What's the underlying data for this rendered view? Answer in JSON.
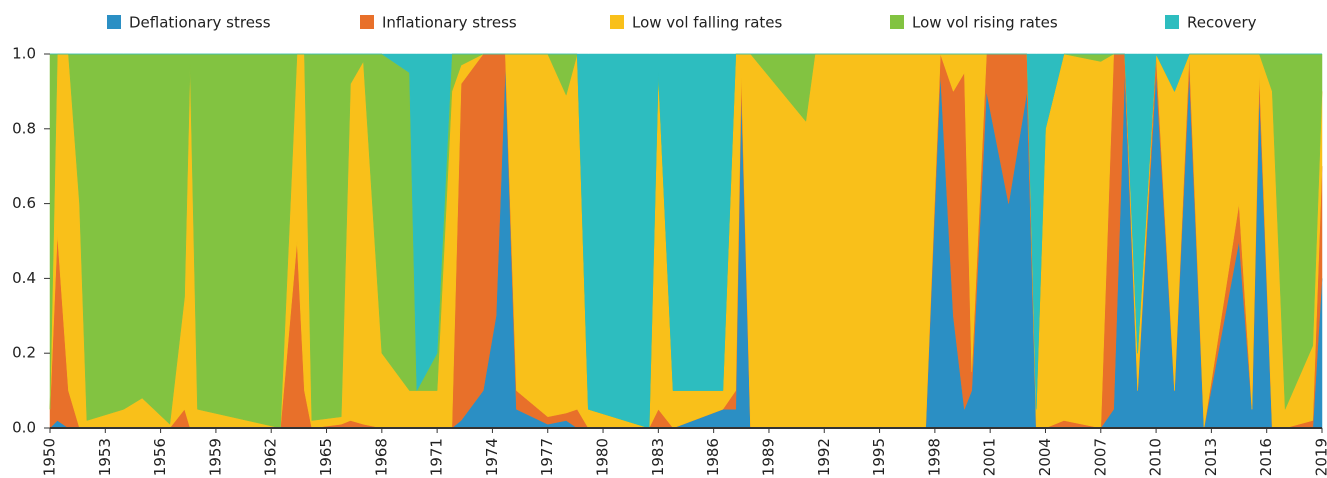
{
  "chart_data": {
    "type": "stacked_area",
    "x": [
      1950.0,
      1950.4,
      1951.0,
      1951.6,
      1952.0,
      1954.0,
      1955.0,
      1956.5,
      1957.3,
      1957.6,
      1958.0,
      1962.5,
      1963.4,
      1963.8,
      1964.2,
      1965.8,
      1966.3,
      1967.0,
      1968.0,
      1969.5,
      1969.9,
      1971.0,
      1971.8,
      1972.3,
      1973.5,
      1974.2,
      1974.7,
      1975.3,
      1977.0,
      1978.0,
      1978.6,
      1979.2,
      1982.5,
      1983.0,
      1983.8,
      1986.5,
      1987.2,
      1987.5,
      1988.0,
      1991.0,
      1991.5,
      1997.5,
      1998.3,
      1999.0,
      1999.6,
      2000.0,
      2000.8,
      2002.0,
      2003.0,
      2003.5,
      2004.0,
      2005.0,
      2007.0,
      2007.7,
      2008.3,
      2009.0,
      2010.0,
      2011.0,
      2011.8,
      2012.6,
      2014.5,
      2015.2,
      2015.6,
      2016.3,
      2017.0,
      2018.5,
      2019.0
    ],
    "series": [
      {
        "name": "Deflationary stress",
        "color": "#2b8fc4",
        "values": [
          0,
          0.02,
          0,
          0,
          0,
          0,
          0,
          0,
          0,
          0,
          0,
          0,
          0,
          0,
          0,
          0,
          0,
          0,
          0,
          0,
          0,
          0,
          0,
          0.02,
          0.1,
          0.3,
          0.97,
          0.05,
          0.01,
          0.02,
          0,
          0,
          0,
          0,
          0,
          0.05,
          0.05,
          0.9,
          0,
          0,
          0,
          0,
          0.95,
          0.3,
          0.05,
          0.1,
          0.9,
          0.6,
          0.9,
          0,
          0,
          0,
          0,
          0.05,
          0.95,
          0.1,
          0.95,
          0.1,
          0.95,
          0,
          0.5,
          0.05,
          0.9,
          0,
          0,
          0,
          0.4
        ]
      },
      {
        "name": "Inflationary stress",
        "color": "#e8702a",
        "values": [
          0.05,
          0.5,
          0.1,
          0,
          0,
          0,
          0,
          0,
          0.05,
          0,
          0,
          0,
          0.5,
          0.1,
          0,
          0.01,
          0.02,
          0.01,
          0,
          0,
          0,
          0,
          0,
          0.9,
          0.9,
          0.7,
          0.03,
          0.05,
          0.02,
          0.02,
          0.05,
          0,
          0,
          0.05,
          0,
          0,
          0.05,
          0.05,
          0,
          0,
          0,
          0,
          0.05,
          0.6,
          0.9,
          0.05,
          0.1,
          0.4,
          0.1,
          0,
          0,
          0.02,
          0,
          0.95,
          0.05,
          0,
          0.05,
          0,
          0.05,
          0,
          0.1,
          0,
          0.05,
          0,
          0,
          0.02,
          0.3
        ]
      },
      {
        "name": "Low vol falling rates",
        "color": "#f9c01a",
        "values": [
          0,
          0.48,
          0.9,
          0.6,
          0.02,
          0.05,
          0.08,
          0.01,
          0.3,
          0.97,
          0.05,
          0,
          0.5,
          0.9,
          0.02,
          0.02,
          0.9,
          0.97,
          0.2,
          0.1,
          0.1,
          0.1,
          0.9,
          0.05,
          0,
          0,
          0,
          0.9,
          0.97,
          0.85,
          0.95,
          0.05,
          0,
          0.9,
          0.1,
          0.05,
          0.9,
          0.05,
          1,
          0.82,
          1,
          1,
          0,
          0.1,
          0.05,
          0.85,
          0,
          0,
          0,
          0.05,
          0.8,
          0.98,
          0.98,
          0,
          0,
          0.1,
          0,
          0.8,
          0,
          1,
          0.4,
          0.95,
          0.05,
          0.9,
          0.05,
          0.2,
          0.2
        ]
      },
      {
        "name": "Low vol rising rates",
        "color": "#82c341",
        "values": [
          0.95,
          0,
          0,
          0.4,
          0.98,
          0.95,
          0.92,
          0.99,
          0.65,
          0.03,
          0.95,
          1,
          0,
          0,
          0.98,
          0.97,
          0.08,
          0.02,
          0.8,
          0.85,
          0,
          0.1,
          0.1,
          0.03,
          0,
          0,
          0,
          0,
          0,
          0.11,
          0,
          0,
          0,
          0,
          0,
          0,
          0,
          0,
          0,
          0.18,
          0,
          0,
          0,
          0,
          0,
          0,
          0,
          0,
          0,
          0,
          0,
          0,
          0.02,
          0,
          0,
          0,
          0,
          0,
          0,
          0,
          0,
          0,
          0,
          0.1,
          0.95,
          0.78,
          0.1
        ]
      },
      {
        "name": "Recovery",
        "color": "#2dbdbf",
        "values": [
          0,
          0,
          0,
          0,
          0,
          0,
          0,
          0,
          0,
          0,
          0,
          0,
          0,
          0,
          0,
          0,
          0,
          0,
          0,
          0.05,
          0.9,
          0.8,
          0,
          0,
          0,
          0,
          0,
          0,
          0,
          0,
          0,
          0.95,
          1,
          0.05,
          0.9,
          0.9,
          0,
          0,
          0,
          0,
          0,
          0,
          0,
          0,
          0,
          0,
          0,
          0,
          0,
          0.95,
          0.2,
          0,
          0,
          0,
          0,
          0.8,
          0,
          0.1,
          0,
          0,
          0,
          0,
          0,
          0,
          0,
          0,
          0
        ]
      }
    ],
    "xlim": [
      1950,
      2019
    ],
    "xticks": [
      1950,
      1953,
      1956,
      1959,
      1962,
      1965,
      1968,
      1971,
      1974,
      1977,
      1980,
      1983,
      1986,
      1989,
      1992,
      1995,
      1998,
      2001,
      2004,
      2007,
      2010,
      2013,
      2016,
      2019
    ],
    "ylim": [
      0,
      1
    ],
    "yticks": [
      {
        "value": 0,
        "label": "0.0"
      },
      0.2,
      0.4,
      0.6,
      0.8,
      {
        "value": 1,
        "label": "1.0"
      }
    ]
  }
}
